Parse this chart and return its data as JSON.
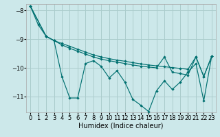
{
  "xlabel": "Humidex (Indice chaleur)",
  "bg_color": "#cce8ea",
  "grid_color": "#aacccc",
  "line_color": "#007070",
  "xlim": [
    -0.5,
    23.5
  ],
  "ylim": [
    -11.55,
    -7.78
  ],
  "yticks": [
    -11,
    -10,
    -9,
    -8
  ],
  "xticks": [
    0,
    1,
    2,
    3,
    4,
    5,
    6,
    7,
    8,
    9,
    10,
    11,
    12,
    13,
    14,
    15,
    16,
    17,
    18,
    19,
    20,
    21,
    22,
    23
  ],
  "s1_x": [
    0,
    1,
    2,
    3,
    4,
    5,
    6,
    7,
    8,
    9,
    10,
    11,
    12,
    13,
    14,
    15,
    16,
    17,
    18,
    19,
    20,
    21,
    22,
    23
  ],
  "s1_y": [
    -7.85,
    -8.5,
    -8.9,
    -9.05,
    -9.15,
    -9.25,
    -9.35,
    -9.45,
    -9.55,
    -9.62,
    -9.68,
    -9.73,
    -9.77,
    -9.82,
    -9.86,
    -9.9,
    -9.93,
    -9.96,
    -9.99,
    -10.02,
    -10.05,
    -9.62,
    -10.3,
    -9.6
  ],
  "s2_x": [
    0,
    2,
    3,
    4,
    5,
    6,
    7,
    8,
    9,
    10,
    11,
    12,
    13,
    14,
    15,
    16,
    17,
    18,
    19,
    20,
    21,
    22,
    23
  ],
  "s2_y": [
    -7.85,
    -8.9,
    -9.05,
    -9.2,
    -9.32,
    -9.42,
    -9.52,
    -9.62,
    -9.7,
    -9.75,
    -9.8,
    -9.85,
    -9.9,
    -9.94,
    -9.97,
    -10.0,
    -9.62,
    -10.15,
    -10.2,
    -10.25,
    -9.62,
    -10.3,
    -9.6
  ],
  "s3_x": [
    0,
    2,
    3,
    4,
    5,
    6,
    7,
    8,
    9,
    10,
    11,
    12,
    13,
    14,
    15,
    16,
    17,
    18,
    19,
    20,
    21,
    22,
    23
  ],
  "s3_y": [
    -7.85,
    -8.9,
    -9.05,
    -10.3,
    -11.05,
    -11.05,
    -9.85,
    -9.75,
    -9.95,
    -10.35,
    -10.1,
    -10.5,
    -11.1,
    -11.3,
    -11.52,
    -10.8,
    -10.45,
    -10.75,
    -10.5,
    -10.15,
    -9.85,
    -11.15,
    -9.6
  ]
}
